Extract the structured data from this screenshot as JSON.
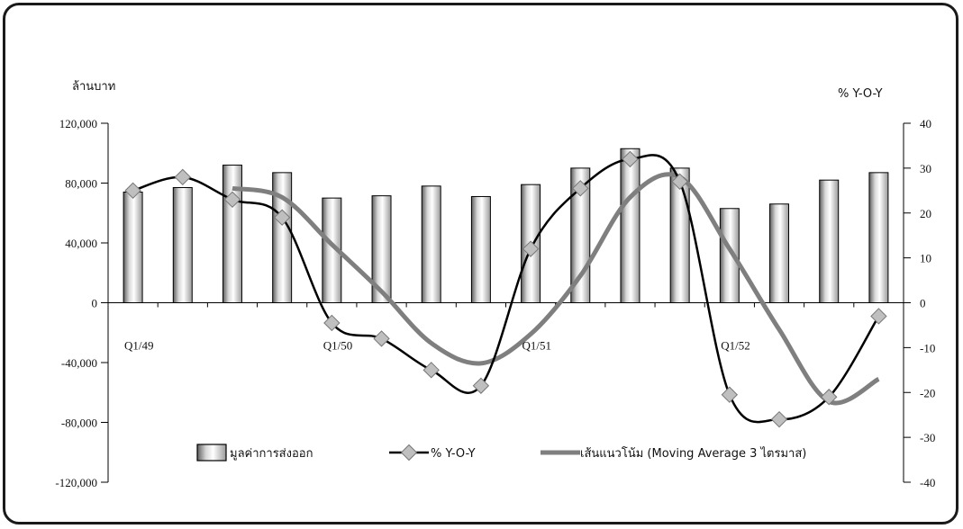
{
  "chart_data": {
    "type": "bar",
    "title": "",
    "ylabel_left": "ล้านบาท",
    "ylabel_right": "% Y-O-Y",
    "x_tick_labels": [
      {
        "index": 0,
        "label": "Q1/49"
      },
      {
        "index": 4,
        "label": "Q1/50"
      },
      {
        "index": 8,
        "label": "Q1/51"
      },
      {
        "index": 12,
        "label": "Q1/52"
      }
    ],
    "ylim_left": [
      -120000,
      120000
    ],
    "yticks_left": [
      -120000,
      -80000,
      -40000,
      0,
      40000,
      80000,
      120000
    ],
    "yticks_left_labels": [
      "-120,000",
      "-80,000",
      "-40,000",
      "0",
      "40,000",
      "80,000",
      "120,000"
    ],
    "ylim_right": [
      -40,
      40
    ],
    "yticks_right": [
      -40,
      -30,
      -20,
      -10,
      0,
      10,
      20,
      30,
      40
    ],
    "yticks_right_labels": [
      "-40",
      "-30",
      "-20",
      "-10",
      "0",
      "10",
      "20",
      "30",
      "40"
    ],
    "grid": false,
    "legend_position": "bottom",
    "series": [
      {
        "name": "มูลค่าการส่งออก",
        "kind": "bar",
        "axis": "left",
        "values": [
          74000,
          77000,
          92000,
          87000,
          70000,
          71500,
          78000,
          71000,
          79000,
          90000,
          103000,
          90000,
          63000,
          66000,
          82000,
          87000
        ]
      },
      {
        "name": "% Y-O-Y",
        "kind": "line-marker",
        "axis": "right",
        "values": [
          25,
          28,
          23,
          19,
          -4.5,
          -8,
          -15,
          -18.5,
          12,
          25.5,
          32,
          27,
          -20.5,
          -26,
          -21,
          -3
        ]
      },
      {
        "name": "เส้นแนวโน้ม (Moving Average 3 ไตรมาส)",
        "kind": "line",
        "axis": "right",
        "start_index": 2,
        "values": [
          25.5,
          23.5,
          13,
          2.5,
          -9,
          -13.5,
          -7,
          6,
          23.5,
          28,
          12,
          -6,
          -22,
          -17
        ]
      }
    ],
    "colors": {
      "bar_fill_dark": "#6a6a6a",
      "bar_fill_light": "#ffffff",
      "yoy_line": "#000000",
      "yoy_marker": "#bfbfbf",
      "trend_line": "#7f7f7f"
    }
  }
}
